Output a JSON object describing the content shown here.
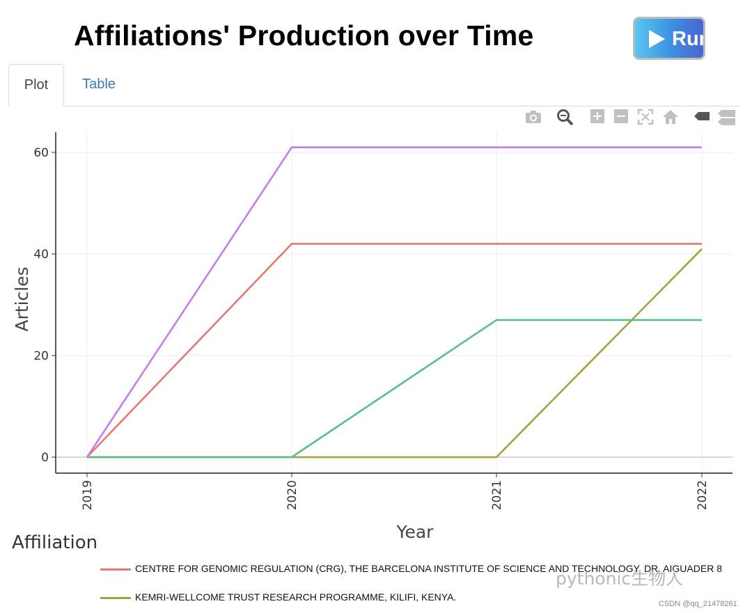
{
  "header": {
    "title": "Affiliations' Production over Time",
    "run_label": "Run"
  },
  "tabs": [
    {
      "label": "Plot",
      "active": true
    },
    {
      "label": "Table",
      "active": false
    }
  ],
  "toolbar": {
    "icons": [
      "camera-icon",
      "zoom-icon",
      "zoom-in-icon",
      "zoom-out-icon",
      "autoscale-icon",
      "home-icon",
      "hover-closest-icon",
      "hover-compare-icon"
    ]
  },
  "legend": {
    "title": "Affiliation"
  },
  "chart_data": {
    "type": "line",
    "title": "",
    "xlabel": "Year",
    "ylabel": "Articles",
    "x": [
      2019,
      2020,
      2021,
      2022
    ],
    "x_tick_labels": [
      "2019",
      "2020",
      "2021",
      "2022"
    ],
    "y_ticks": [
      0,
      20,
      40,
      60
    ],
    "ylim": [
      -3,
      64
    ],
    "grid": true,
    "legend_placement": "bottom",
    "series": [
      {
        "name": "CENTRE FOR GENOMIC REGULATION (CRG), THE BARCELONA INSTITUTE OF SCIENCE AND TECHNOLOGY, DR. AIGUADER 8",
        "color": "#e8786f",
        "values": [
          0,
          42,
          42,
          42
        ],
        "in_legend": true
      },
      {
        "name": "KEMRI-WELLCOME TRUST RESEARCH PROGRAMME, KILIFI, KENYA.",
        "color": "#a4a23a",
        "values": [
          0,
          0,
          0,
          41
        ],
        "in_legend": true
      },
      {
        "name": "",
        "color": "#55bf84",
        "values": [
          0,
          0,
          27,
          27
        ],
        "in_legend": false
      },
      {
        "name": "",
        "color": "#c77bf0",
        "values": [
          0,
          61,
          61,
          61
        ],
        "in_legend": false
      }
    ]
  },
  "watermark": "pythonic生物人",
  "credit": "CSDN @qq_21478261"
}
